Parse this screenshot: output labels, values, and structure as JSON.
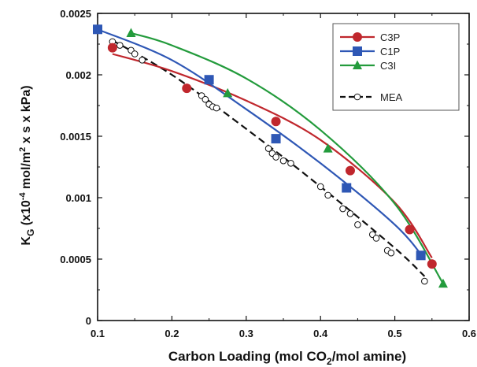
{
  "chart_data": {
    "type": "scatter",
    "xlabel": {
      "main": "Carbon Loading (mol CO",
      "sub": "2",
      "tail": "/mol amine)"
    },
    "ylabel": {
      "main": "K",
      "sub": "G",
      "rest": " (x10",
      "sup": "-4",
      "unit1": " mol/m",
      "sup2": "2",
      "unit2": " x s x kPa)"
    },
    "xlim": [
      0.1,
      0.6
    ],
    "ylim": [
      0,
      0.0025
    ],
    "xticks": [
      "0.1",
      "0.2",
      "0.3",
      "0.4",
      "0.5",
      "0.6"
    ],
    "xtick_values": [
      0.1,
      0.2,
      0.3,
      0.4,
      0.5,
      0.6
    ],
    "yticks": [
      "0",
      "0.0005",
      "0.001",
      "0.0015",
      "0.002",
      "0.0025"
    ],
    "ytick_values": [
      0,
      0.0005,
      0.001,
      0.0015,
      0.002,
      0.0025
    ],
    "grid": false,
    "legend_position": "top-right",
    "series": [
      {
        "name": "C3P",
        "color": "#c0272d",
        "marker": "circle",
        "points": [
          [
            0.12,
            0.00222
          ],
          [
            0.22,
            0.00189
          ],
          [
            0.34,
            0.00162
          ],
          [
            0.44,
            0.00122
          ],
          [
            0.52,
            0.00074
          ],
          [
            0.55,
            0.00046
          ]
        ],
        "trend": [
          [
            0.12,
            0.00217
          ],
          [
            0.2,
            0.00203
          ],
          [
            0.3,
            0.00179
          ],
          [
            0.4,
            0.00147
          ],
          [
            0.5,
            0.00096
          ],
          [
            0.55,
            0.00051
          ]
        ]
      },
      {
        "name": "C1P",
        "color": "#2e57b5",
        "marker": "square",
        "points": [
          [
            0.1,
            0.00237
          ],
          [
            0.25,
            0.00196
          ],
          [
            0.34,
            0.00148
          ],
          [
            0.435,
            0.00108
          ],
          [
            0.535,
            0.00053
          ]
        ],
        "trend": [
          [
            0.1,
            0.00237
          ],
          [
            0.2,
            0.00212
          ],
          [
            0.3,
            0.00172
          ],
          [
            0.4,
            0.00128
          ],
          [
            0.5,
            0.00078
          ],
          [
            0.54,
            0.0005
          ]
        ]
      },
      {
        "name": "C3I",
        "color": "#239b3c",
        "marker": "triangle",
        "points": [
          [
            0.145,
            0.00234
          ],
          [
            0.275,
            0.00185
          ],
          [
            0.41,
            0.0014
          ],
          [
            0.565,
            0.0003
          ]
        ],
        "trend": [
          [
            0.145,
            0.00234
          ],
          [
            0.2,
            0.00224
          ],
          [
            0.3,
            0.00197
          ],
          [
            0.4,
            0.00155
          ],
          [
            0.5,
            0.00095
          ],
          [
            0.565,
            0.0003
          ]
        ]
      },
      {
        "name": "MEA",
        "color": "#111111",
        "marker": "open-circle",
        "dashed": true,
        "points": [
          [
            0.12,
            0.00227
          ],
          [
            0.13,
            0.00224
          ],
          [
            0.145,
            0.0022
          ],
          [
            0.15,
            0.00217
          ],
          [
            0.16,
            0.00212
          ],
          [
            0.24,
            0.00183
          ],
          [
            0.245,
            0.0018
          ],
          [
            0.25,
            0.00176
          ],
          [
            0.255,
            0.00174
          ],
          [
            0.26,
            0.00173
          ],
          [
            0.33,
            0.0014
          ],
          [
            0.335,
            0.00136
          ],
          [
            0.34,
            0.00133
          ],
          [
            0.35,
            0.0013
          ],
          [
            0.36,
            0.00128
          ],
          [
            0.4,
            0.00109
          ],
          [
            0.41,
            0.00102
          ],
          [
            0.43,
            0.00091
          ],
          [
            0.44,
            0.00087
          ],
          [
            0.45,
            0.00078
          ],
          [
            0.47,
            0.0007
          ],
          [
            0.475,
            0.00067
          ],
          [
            0.49,
            0.00057
          ],
          [
            0.495,
            0.00055
          ],
          [
            0.54,
            0.00032
          ]
        ],
        "trend": [
          [
            0.12,
            0.00228
          ],
          [
            0.2,
            0.002
          ],
          [
            0.3,
            0.00156
          ],
          [
            0.4,
            0.00109
          ],
          [
            0.5,
            0.00059
          ],
          [
            0.54,
            0.00036
          ]
        ]
      }
    ]
  }
}
